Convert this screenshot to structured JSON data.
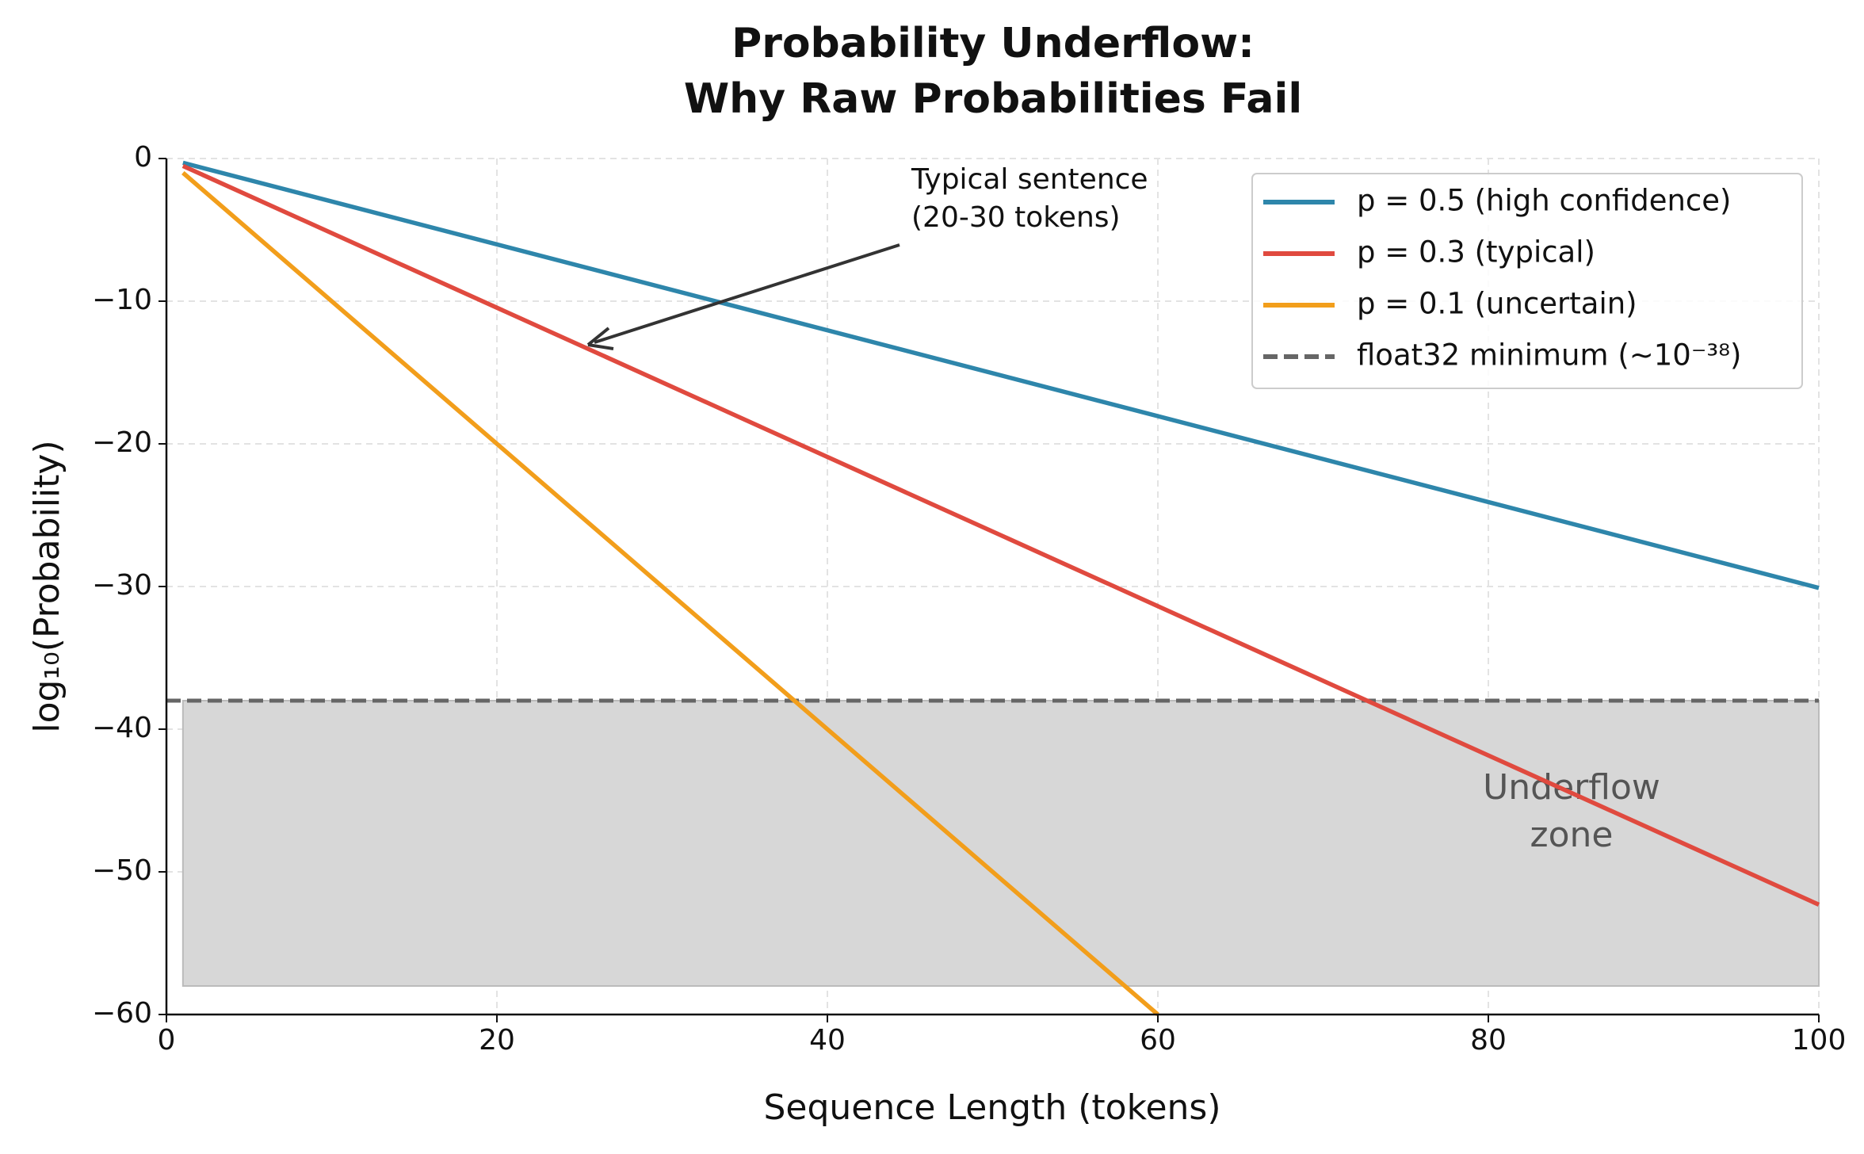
{
  "chart_data": {
    "type": "line",
    "title": [
      "Probability Underflow:",
      "Why Raw Probabilities Fail"
    ],
    "xlabel": "Sequence Length (tokens)",
    "ylabel": "log₁₀(Probability)",
    "xlim": [
      0,
      100
    ],
    "ylim": [
      -60,
      0
    ],
    "xticks": [
      0,
      20,
      40,
      60,
      80,
      100
    ],
    "yticks": [
      0,
      {
        "value": -10,
        "label": "−10"
      },
      {
        "value": -20,
        "label": "−20"
      },
      {
        "value": -30,
        "label": "−30"
      },
      {
        "value": -40,
        "label": "−40"
      },
      {
        "value": -50,
        "label": "−50"
      },
      {
        "value": -60,
        "label": "−60"
      }
    ],
    "grid": true,
    "legend": "upper right",
    "series": [
      {
        "name": "p = 0.5 (high confidence)",
        "color": "#2e86ab",
        "x": [
          1,
          100
        ],
        "values": [
          -0.3,
          -30.1
        ]
      },
      {
        "name": "p = 0.3 (typical)",
        "color": "#e04a3f",
        "x": [
          1,
          100
        ],
        "values": [
          -0.52,
          -52.3
        ]
      },
      {
        "name": "p = 0.1 (uncertain)",
        "color": "#f29e1b",
        "x": [
          1,
          60
        ],
        "values": [
          -1,
          -60
        ]
      }
    ],
    "threshold": {
      "name": "float32 minimum (~10⁻³⁸)",
      "value": -38,
      "color": "#666666"
    },
    "shade": {
      "xlim": [
        1,
        100
      ],
      "ylim": [
        -58,
        -38
      ],
      "color": "#d7d7d7",
      "label": [
        "Underflow",
        "zone"
      ]
    },
    "annotation": [
      "Typical sentence",
      "(20-30 tokens)"
    ]
  }
}
